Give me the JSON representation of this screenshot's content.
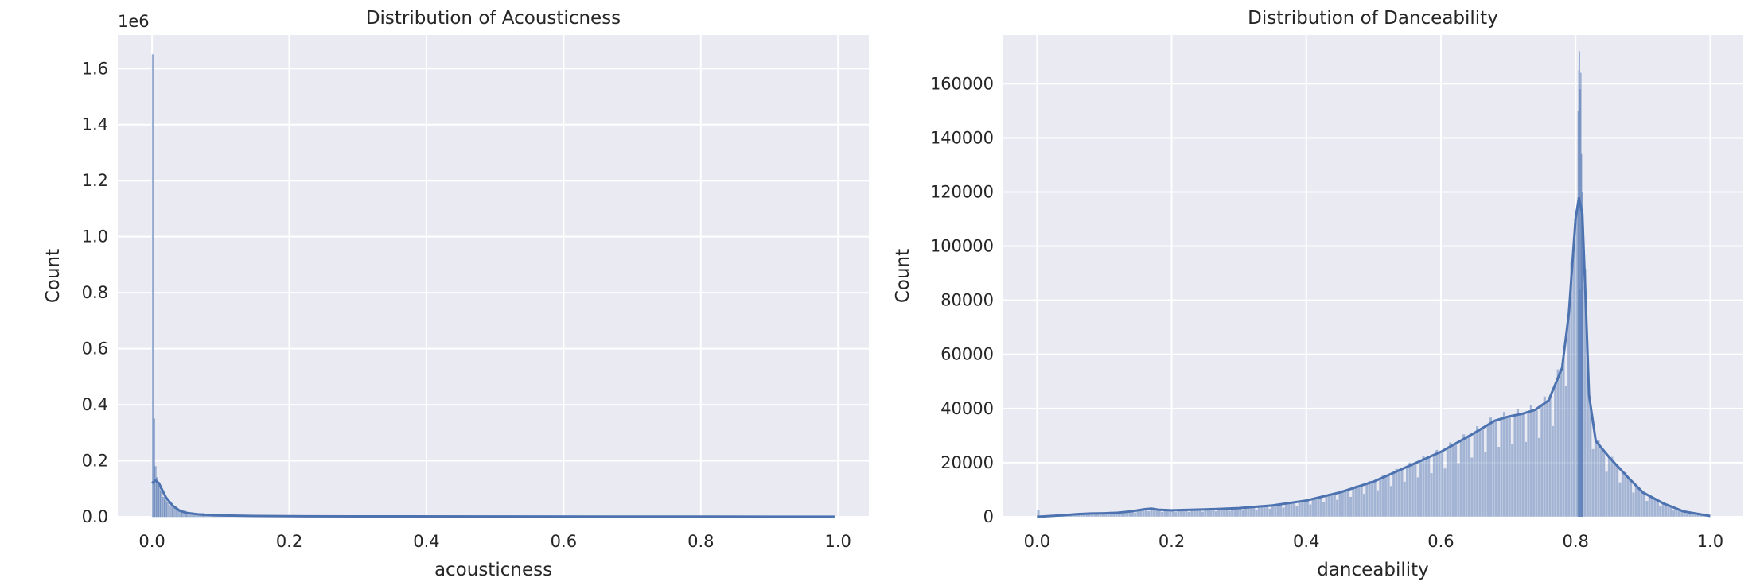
{
  "chart_data": [
    {
      "type": "bar",
      "title": "Distribution of Acousticness",
      "xlabel": "acousticness",
      "ylabel": "Count",
      "offset_label": "1e6",
      "xlim": [
        -0.05,
        1.045
      ],
      "ylim": [
        0,
        1.72
      ],
      "xticks": [
        0.0,
        0.2,
        0.4,
        0.6,
        0.8,
        1.0
      ],
      "xtick_labels": [
        "0.0",
        "0.2",
        "0.4",
        "0.6",
        "0.8",
        "1.0"
      ],
      "yticks": [
        0,
        0.2,
        0.4,
        0.6,
        0.8,
        1.0,
        1.2,
        1.4,
        1.6
      ],
      "ytick_labels": [
        "0.0",
        "0.2",
        "0.4",
        "0.6",
        "0.8",
        "1.0",
        "1.2",
        "1.4",
        "1.6"
      ],
      "grid": true,
      "color": "#4c72b0",
      "bins": {
        "x": [
          0.0,
          0.002,
          0.004,
          0.006,
          0.008,
          0.01,
          0.012,
          0.015,
          0.018,
          0.021,
          0.025,
          0.03,
          0.036,
          0.043,
          0.05,
          0.06,
          0.075,
          0.09,
          0.11,
          0.14,
          0.18,
          0.25,
          0.35,
          0.5,
          0.7,
          0.9
        ],
        "counts": [
          1.65,
          0.35,
          0.18,
          0.14,
          0.12,
          0.11,
          0.09,
          0.07,
          0.06,
          0.05,
          0.04,
          0.03,
          0.025,
          0.02,
          0.015,
          0.012,
          0.01,
          0.008,
          0.006,
          0.005,
          0.004,
          0.003,
          0.002,
          0.0015,
          0.001,
          0.001
        ]
      },
      "kde": {
        "x": [
          0.0,
          0.005,
          0.01,
          0.015,
          0.02,
          0.03,
          0.04,
          0.05,
          0.07,
          0.1,
          0.15,
          0.2,
          0.3,
          0.5,
          0.7,
          0.9,
          0.995
        ],
        "y": [
          0.12,
          0.13,
          0.12,
          0.095,
          0.07,
          0.04,
          0.022,
          0.014,
          0.008,
          0.005,
          0.003,
          0.002,
          0.0015,
          0.001,
          0.0007,
          0.0005,
          0.0003
        ]
      }
    },
    {
      "type": "bar",
      "title": "Distribution of Danceability",
      "xlabel": "danceability",
      "ylabel": "Count",
      "xlim": [
        -0.05,
        1.048
      ],
      "ylim": [
        0,
        178000
      ],
      "xticks": [
        0.0,
        0.2,
        0.4,
        0.6,
        0.8,
        1.0
      ],
      "xtick_labels": [
        "0.0",
        "0.2",
        "0.4",
        "0.6",
        "0.8",
        "1.0"
      ],
      "yticks": [
        0,
        20000,
        40000,
        60000,
        80000,
        100000,
        120000,
        140000,
        160000
      ],
      "ytick_labels": [
        "0",
        "20000",
        "40000",
        "60000",
        "80000",
        "100000",
        "120000",
        "140000",
        "160000"
      ],
      "grid": true,
      "color": "#4c72b0",
      "kde": {
        "x": [
          0.0,
          0.02,
          0.04,
          0.06,
          0.08,
          0.1,
          0.12,
          0.14,
          0.16,
          0.17,
          0.18,
          0.2,
          0.25,
          0.3,
          0.35,
          0.4,
          0.45,
          0.5,
          0.55,
          0.6,
          0.65,
          0.68,
          0.7,
          0.72,
          0.74,
          0.76,
          0.78,
          0.79,
          0.8,
          0.805,
          0.81,
          0.815,
          0.82,
          0.83,
          0.85,
          0.88,
          0.9,
          0.93,
          0.96,
          1.0
        ],
        "y": [
          0,
          300,
          600,
          1000,
          1200,
          1300,
          1500,
          2000,
          2800,
          3000,
          2600,
          2400,
          2700,
          3200,
          4200,
          6000,
          9000,
          13000,
          18500,
          24000,
          31000,
          35500,
          37000,
          38000,
          39500,
          43000,
          55000,
          75000,
          110000,
          118000,
          112000,
          80000,
          45000,
          28000,
          22000,
          14000,
          9000,
          5000,
          2000,
          300
        ]
      },
      "spikes": {
        "x": [
          0.803,
          0.804,
          0.805,
          0.806,
          0.807,
          0.808,
          0.809,
          0.81
        ],
        "counts": [
          150000,
          165000,
          172000,
          158000,
          164000,
          134000,
          120000,
          85000
        ]
      }
    }
  ]
}
